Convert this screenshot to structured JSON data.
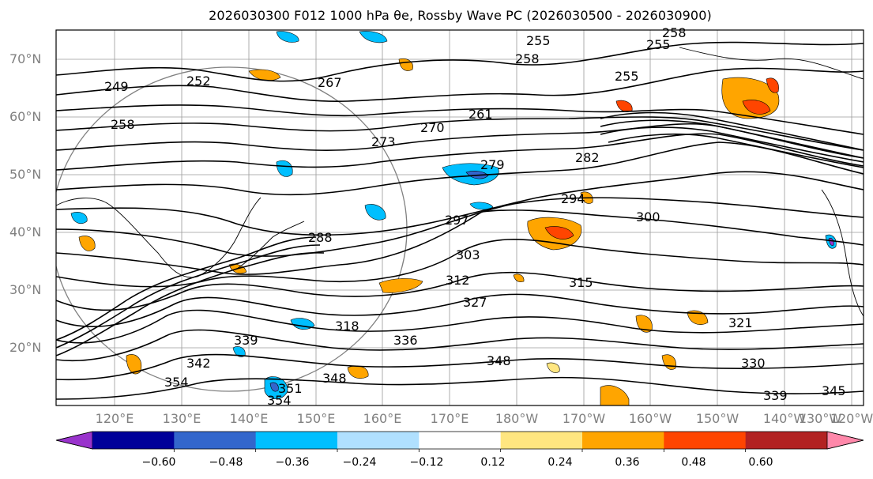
{
  "title": "2026030300 F012 1000 hPa θe, Rossby Wave PC (2026030500 - 2026030900)",
  "latitude_labels": [
    "70°N",
    "60°N",
    "50°N",
    "40°N",
    "30°N",
    "20°N"
  ],
  "longitude_labels": [
    "120°E",
    "130°E",
    "140°E",
    "150°E",
    "160°E",
    "170°E",
    "180°W",
    "170°W",
    "160°W",
    "150°W",
    "140°W",
    "130°W",
    "120°W"
  ],
  "colorbar": {
    "ticks": [
      "−0.60",
      "−0.48",
      "−0.36",
      "−0.24",
      "−0.12",
      "0.12",
      "0.24",
      "0.36",
      "0.48",
      "0.60"
    ],
    "colors": [
      "#9933cc",
      "#000099",
      "#3366cc",
      "#00bfff",
      "#b0e0ff",
      "#ffffff",
      "#ffe680",
      "#ffa500",
      "#ff4500",
      "#b22222",
      "#ff88aa"
    ]
  },
  "contour_labels": [
    "249",
    "252",
    "255",
    "255",
    "255",
    "258",
    "258",
    "258",
    "261",
    "267",
    "270",
    "273",
    "279",
    "282",
    "288",
    "294",
    "297",
    "300",
    "303",
    "312",
    "315",
    "318",
    "321",
    "327",
    "330",
    "336",
    "339",
    "339",
    "342",
    "345",
    "348",
    "348",
    "351",
    "354",
    "354"
  ]
}
